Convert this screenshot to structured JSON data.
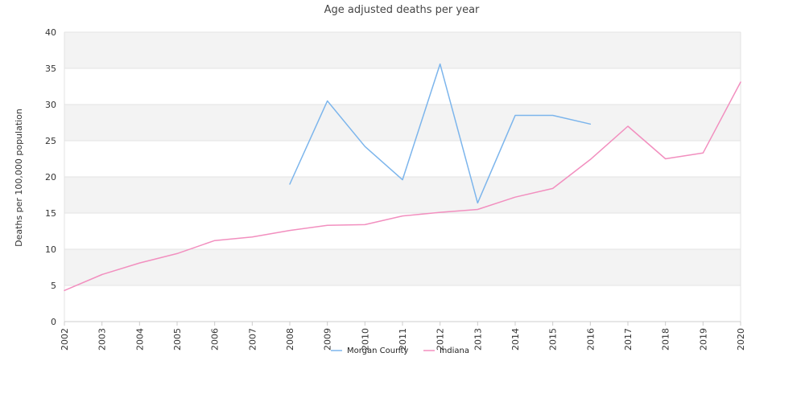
{
  "chart_data": {
    "type": "line",
    "title": "Age adjusted deaths per year",
    "xlabel": "",
    "ylabel": "Deaths per 100,000 population",
    "ylim": [
      0,
      40
    ],
    "yticks": [
      0,
      5,
      10,
      15,
      20,
      25,
      30,
      35,
      40
    ],
    "categories": [
      "2002",
      "2003",
      "2004",
      "2005",
      "2006",
      "2007",
      "2008",
      "2009",
      "2010",
      "2011",
      "2012",
      "2013",
      "2014",
      "2015",
      "2016",
      "2017",
      "2018",
      "2019",
      "2020"
    ],
    "grid": true,
    "legend_position": "bottom",
    "series": [
      {
        "name": "Morgan County",
        "color": "#7cb5ec",
        "values": [
          null,
          null,
          null,
          null,
          null,
          null,
          19.0,
          30.5,
          24.2,
          19.6,
          35.6,
          16.4,
          28.5,
          28.5,
          27.3,
          null,
          null,
          null,
          null
        ]
      },
      {
        "name": "Indiana",
        "color": "#f28fbf",
        "values": [
          4.3,
          6.5,
          8.1,
          9.4,
          11.2,
          11.7,
          12.6,
          13.3,
          13.4,
          14.6,
          15.1,
          15.5,
          17.2,
          18.4,
          22.4,
          27.0,
          22.5,
          23.3,
          33.1
        ]
      }
    ]
  }
}
